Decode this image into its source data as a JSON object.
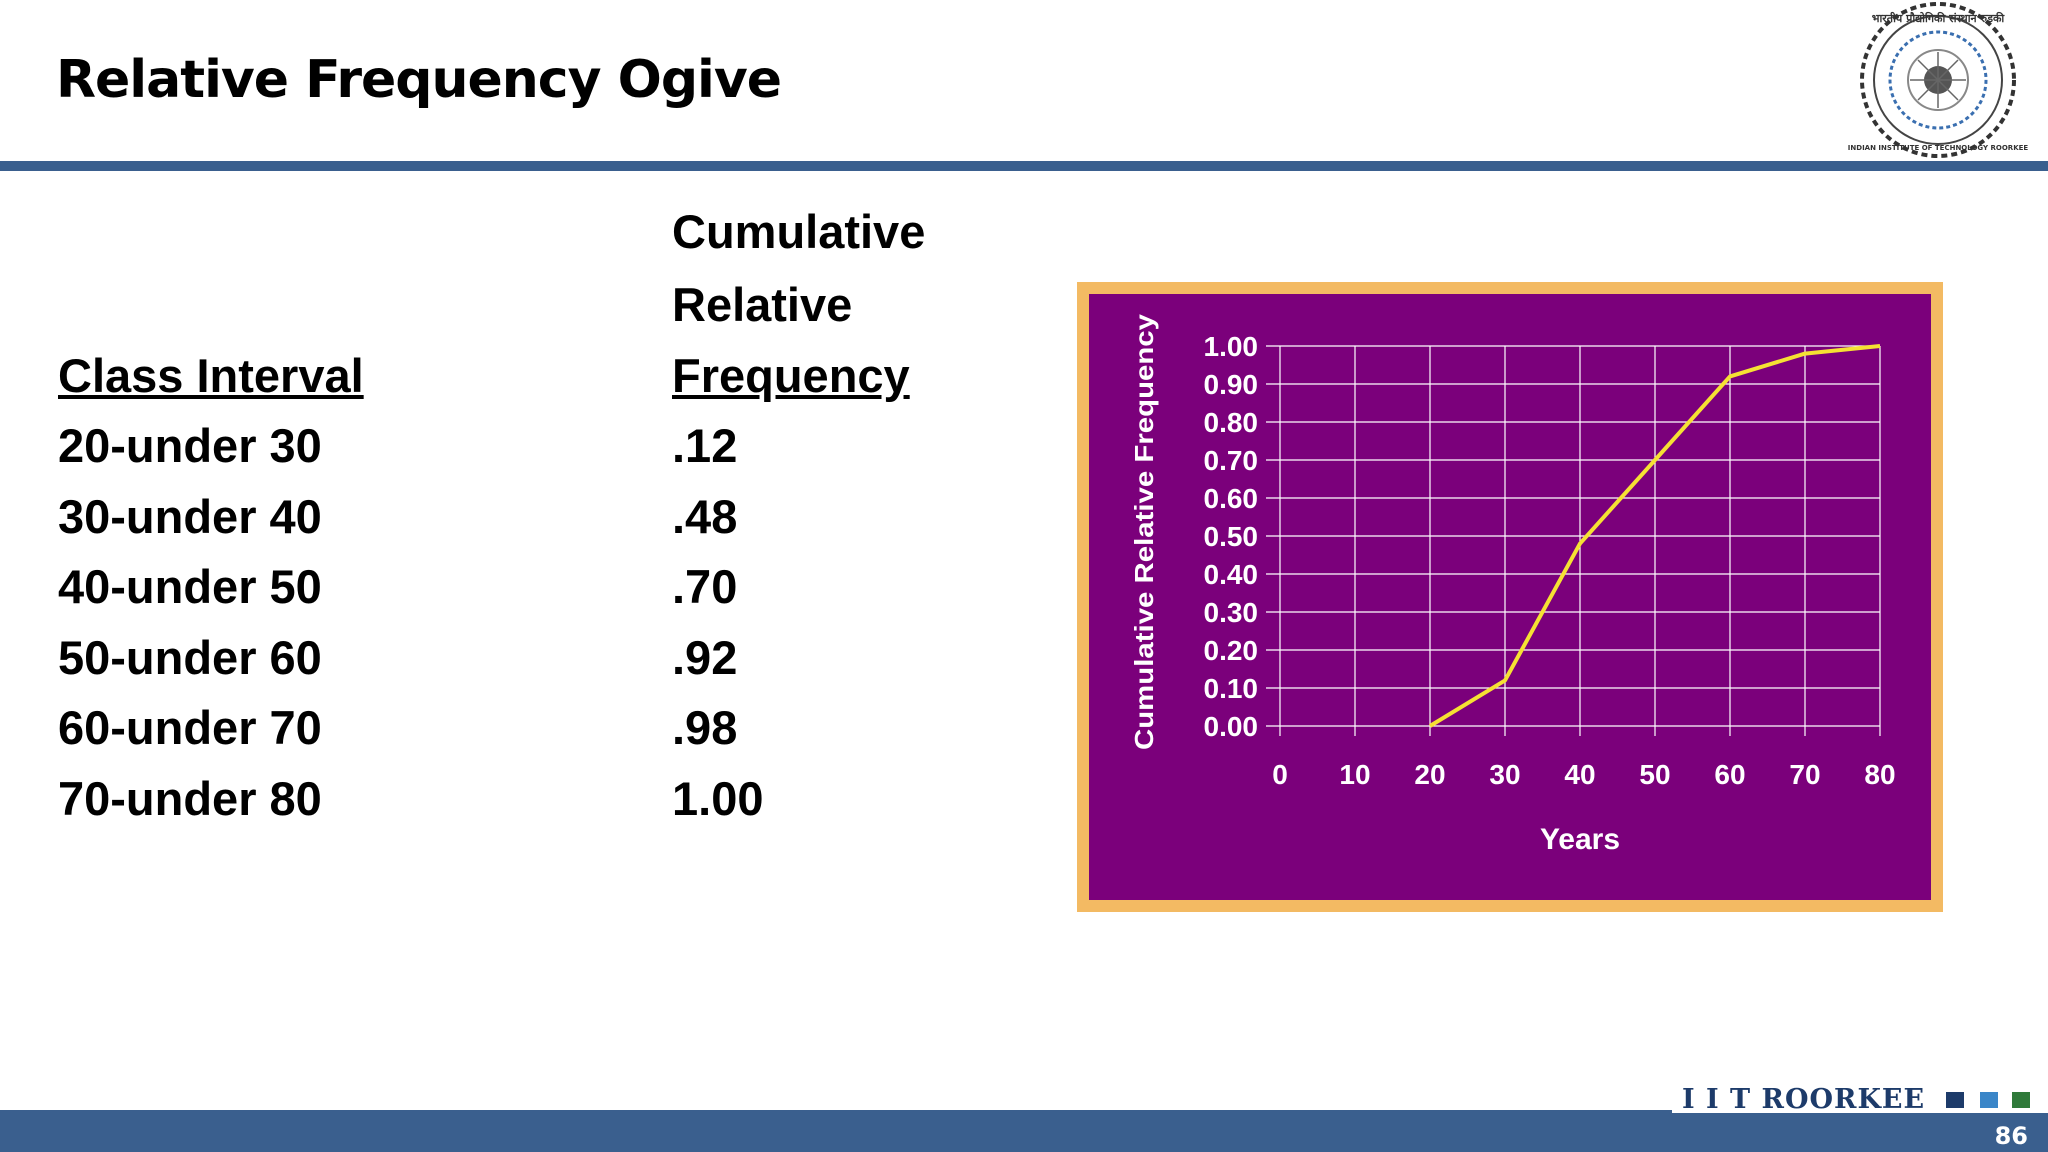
{
  "slide": {
    "title": "Relative Frequency Ogive",
    "page_number": "86",
    "footer_brand": "I I T ROORKEE"
  },
  "logo": {
    "top_text": "भारतीय प्रौद्योगिकी संस्थान रुड़की",
    "bottom_text": "INDIAN INSTITUTE OF TECHNOLOGY ROORKEE"
  },
  "table": {
    "col1_header": "Class Interval",
    "col2_header_lines": [
      "Cumulative",
      "Relative",
      "Frequency"
    ],
    "rows": [
      {
        "interval": "20-under 30",
        "value": ".12"
      },
      {
        "interval": "30-under 40",
        "value": ".48"
      },
      {
        "interval": "40-under 50",
        "value": ".70"
      },
      {
        "interval": "50-under 60",
        "value": ".92"
      },
      {
        "interval": "60-under 70",
        "value": ".98"
      },
      {
        "interval": "70-under 80",
        "value": "1.00"
      }
    ]
  },
  "chart_data": {
    "type": "line",
    "title": "",
    "xlabel": "Years",
    "ylabel": "Cumulative Relative Frequency",
    "x": [
      20,
      30,
      40,
      50,
      60,
      70,
      80
    ],
    "series": [
      {
        "values": [
          0.0,
          0.12,
          0.48,
          0.7,
          0.92,
          0.98,
          1.0
        ]
      }
    ],
    "xlim": [
      0,
      80
    ],
    "ylim": [
      0,
      1
    ],
    "x_ticks": [
      "0",
      "10",
      "20",
      "30",
      "40",
      "50",
      "60",
      "70",
      "80"
    ],
    "y_ticks": [
      "0.00",
      "0.10",
      "0.20",
      "0.30",
      "0.40",
      "0.50",
      "0.60",
      "0.70",
      "0.80",
      "0.90",
      "1.00"
    ],
    "grid": true,
    "colors": {
      "plot_background": "#7b007b",
      "frame": "#f3ba63",
      "line": "#f5e133",
      "grid": "#ffffff",
      "text": "#ffffff"
    }
  }
}
